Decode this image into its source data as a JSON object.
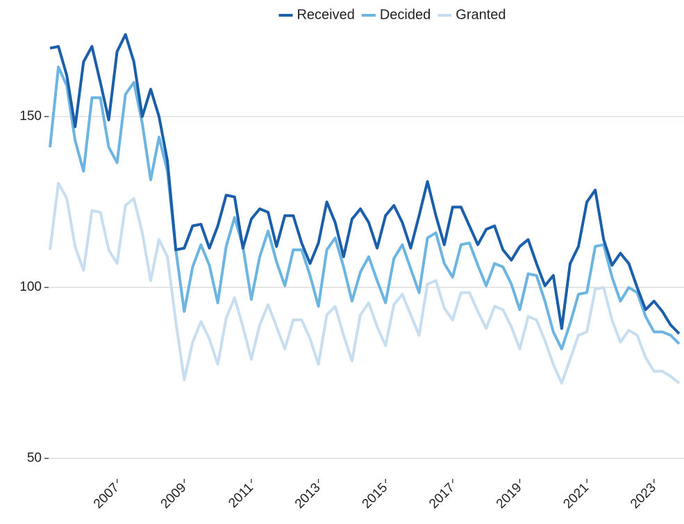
{
  "chart_data": {
    "type": "line",
    "x": [
      2005,
      2005.25,
      2005.5,
      2005.75,
      2006,
      2006.25,
      2006.5,
      2006.75,
      2007,
      2007.25,
      2007.5,
      2007.75,
      2008,
      2008.25,
      2008.5,
      2008.75,
      2009,
      2009.25,
      2009.5,
      2009.75,
      2010,
      2010.25,
      2010.5,
      2010.75,
      2011,
      2011.25,
      2011.5,
      2011.75,
      2012,
      2012.25,
      2012.5,
      2012.75,
      2013,
      2013.25,
      2013.5,
      2013.75,
      2014,
      2014.25,
      2014.5,
      2014.75,
      2015,
      2015.25,
      2015.5,
      2015.75,
      2016,
      2016.25,
      2016.5,
      2016.75,
      2017,
      2017.25,
      2017.5,
      2017.75,
      2018,
      2018.25,
      2018.5,
      2018.75,
      2019,
      2019.25,
      2019.5,
      2019.75,
      2020,
      2020.25,
      2020.5,
      2020.75,
      2021,
      2021.25,
      2021.5,
      2021.75,
      2022,
      2022.25,
      2022.5,
      2022.75,
      2023,
      2023.25,
      2023.5,
      2023.75
    ],
    "series": [
      {
        "name": "Received",
        "color": "#1b5ea9",
        "values": [
          170,
          170.5,
          162,
          147,
          166,
          170.5,
          160,
          149,
          169,
          174,
          166,
          150,
          158,
          150,
          137,
          111,
          111.5,
          118,
          118.5,
          111.5,
          118,
          127,
          126.5,
          111.5,
          120,
          123,
          122,
          112,
          121,
          121,
          113,
          107,
          113,
          125,
          119,
          109,
          120,
          123,
          119,
          111.5,
          121,
          124,
          119,
          111.5,
          121,
          131,
          121,
          112.5,
          123.5,
          123.5,
          118,
          112.5,
          117,
          118,
          111,
          108,
          112,
          114,
          107,
          100.5,
          103.5,
          88,
          107,
          112,
          125,
          128.5,
          114,
          106.5,
          110,
          107,
          100,
          93.5,
          96,
          93,
          89,
          86.5
        ]
      },
      {
        "name": "Decided",
        "color": "#6cb4e1",
        "values": [
          141,
          164.5,
          159,
          143,
          134,
          155.5,
          155.5,
          141,
          136.5,
          156.5,
          160,
          148,
          131.5,
          144,
          134,
          111,
          93,
          106,
          112.5,
          106.5,
          95.5,
          112,
          120.5,
          112,
          96.5,
          109,
          116.5,
          107.5,
          100.5,
          111,
          111,
          103.5,
          94.5,
          111,
          114.5,
          106,
          96,
          104.5,
          109,
          102,
          95.5,
          108.5,
          112.5,
          105.5,
          98.5,
          114.5,
          116,
          107,
          103,
          112.5,
          113,
          106.5,
          100.5,
          107,
          106,
          101,
          93.5,
          104,
          103.5,
          96,
          87,
          82,
          89.5,
          98,
          98.5,
          112,
          112.5,
          103,
          96,
          100,
          98.5,
          91.5,
          87,
          87,
          86,
          83.5
        ]
      },
      {
        "name": "Granted",
        "color": "#c7ddf0",
        "values": [
          111,
          130.5,
          126,
          112,
          105,
          122.5,
          122,
          111,
          107,
          124,
          126,
          116,
          102,
          114,
          109,
          90,
          73,
          84,
          90,
          85,
          77.5,
          91,
          97,
          88.5,
          79,
          89,
          95,
          88.5,
          82,
          90.5,
          90.5,
          85,
          77.5,
          92,
          94.5,
          86,
          78.5,
          92,
          95.5,
          88.5,
          83,
          95,
          98,
          92,
          86,
          101,
          102,
          94,
          90.5,
          98.5,
          98.5,
          93,
          88,
          94.5,
          93.5,
          88.5,
          82,
          91.5,
          90.5,
          84.5,
          77.5,
          72,
          79,
          86,
          87,
          99.5,
          100,
          90.5,
          84,
          87.5,
          86,
          79.5,
          75.5,
          75.5,
          74,
          72
        ]
      }
    ],
    "xlim": [
      2005,
      2023.75
    ],
    "xticks": [
      2007,
      2009,
      2011,
      2013,
      2015,
      2017,
      2019,
      2021,
      2023
    ],
    "ylim": [
      44,
      178
    ],
    "yticks": [
      50,
      100,
      150
    ],
    "grid": true,
    "legend": "top"
  }
}
